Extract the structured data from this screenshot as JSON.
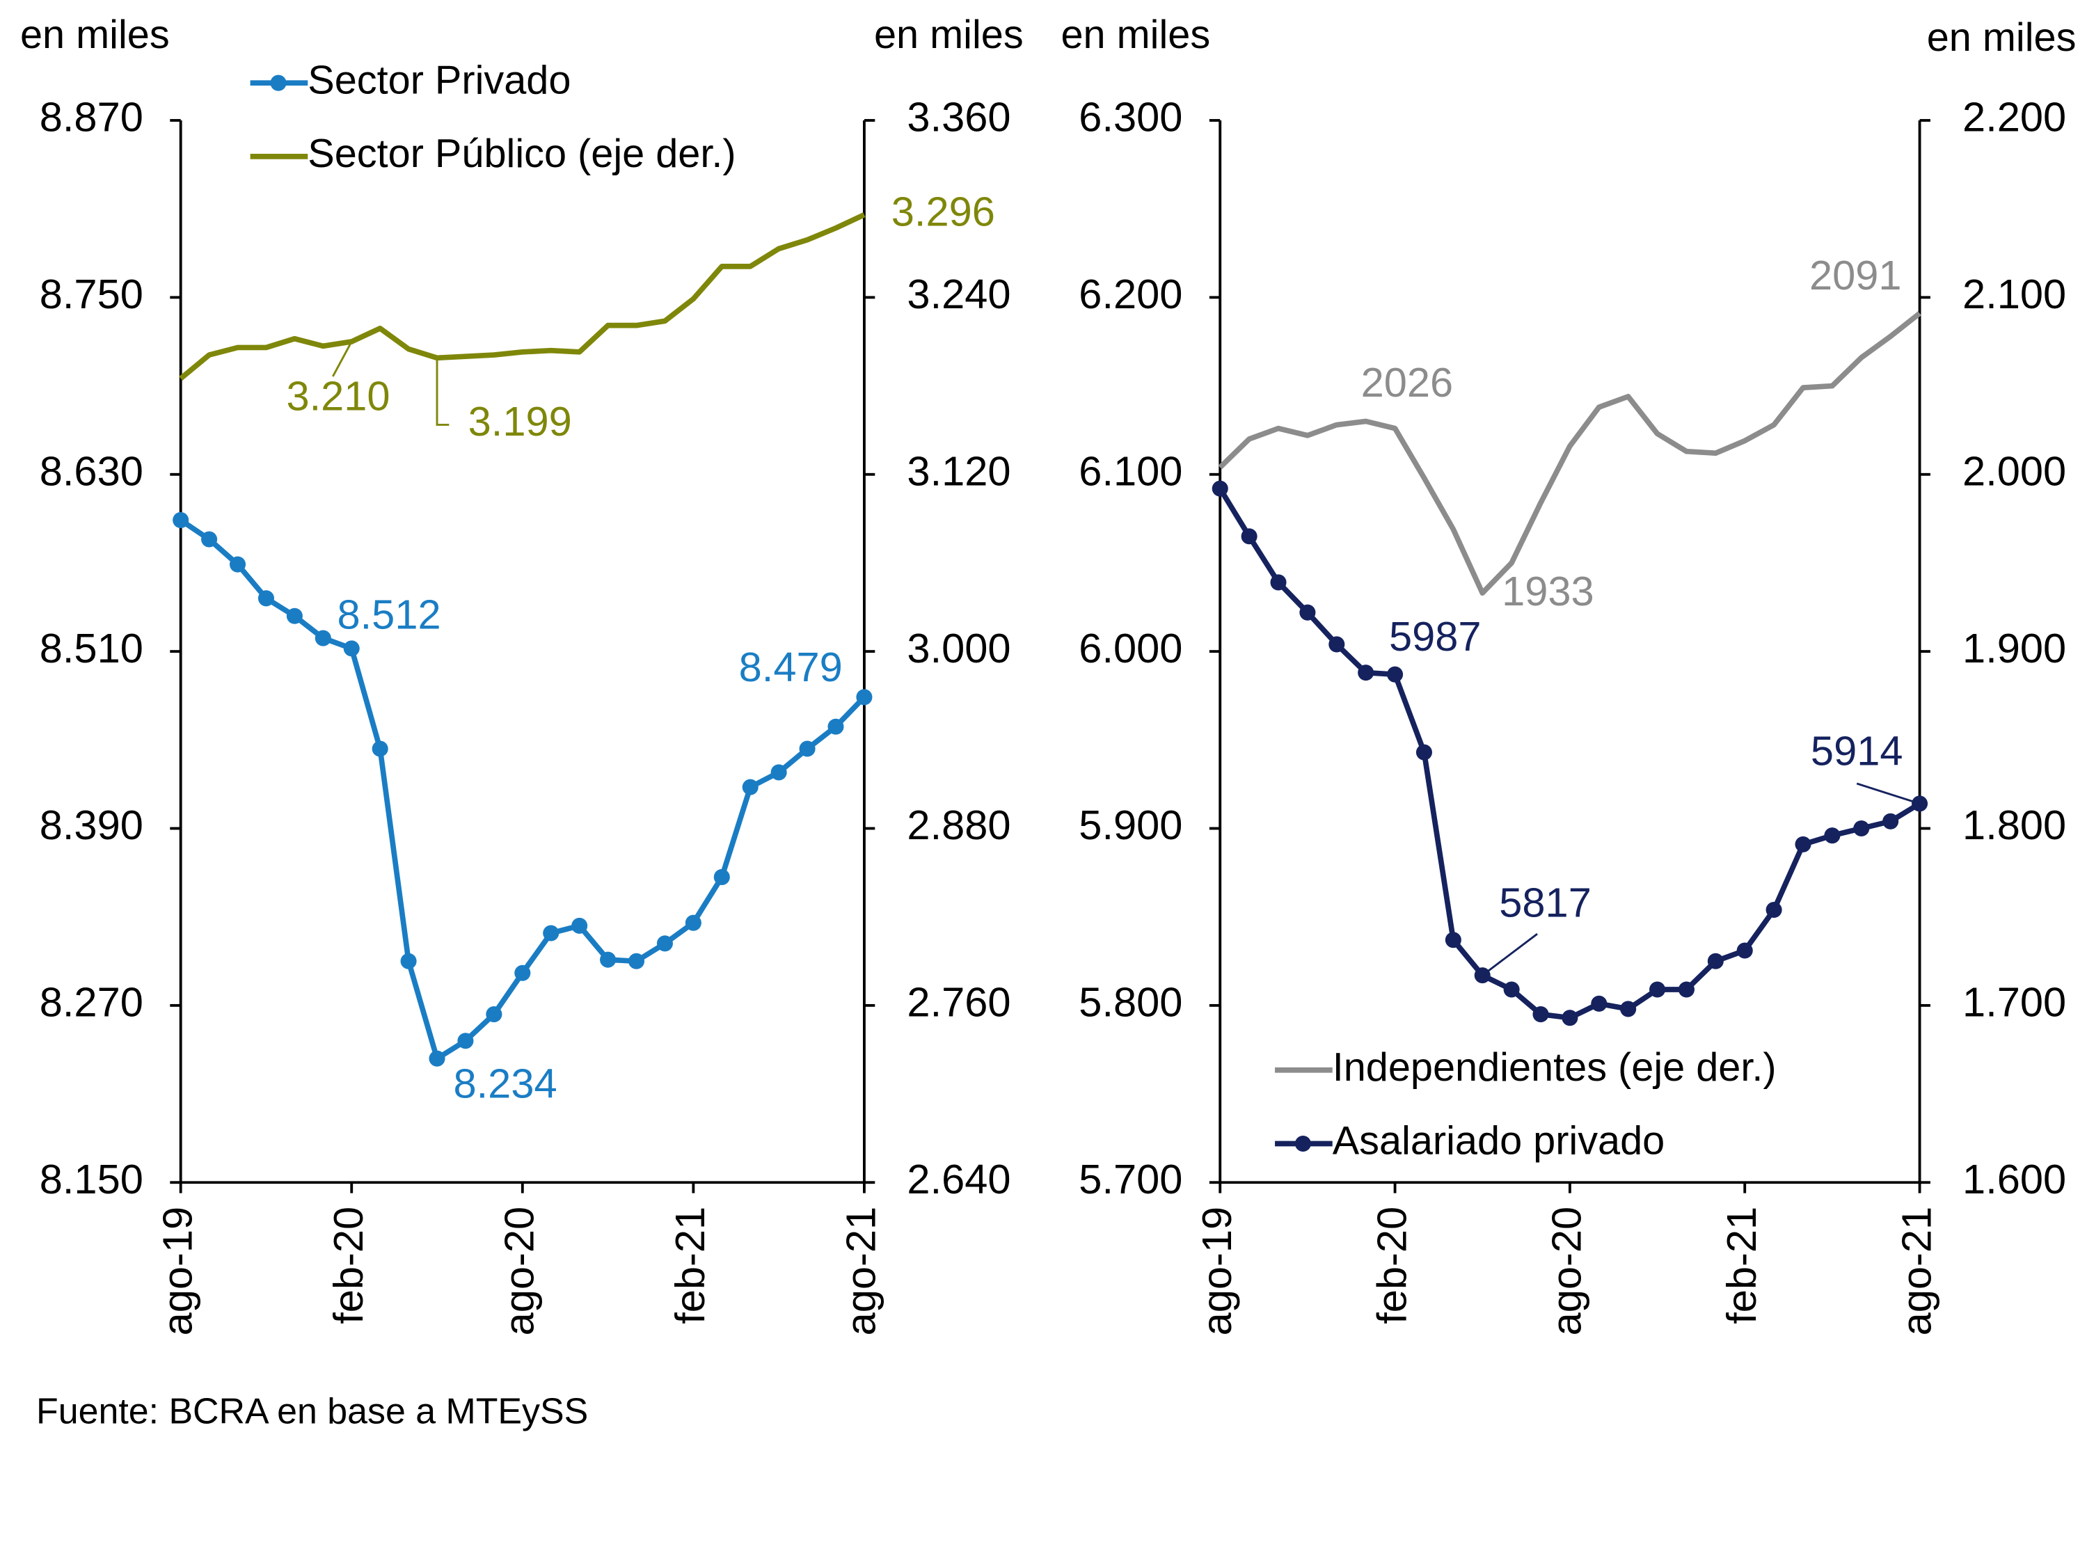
{
  "chart_data": [
    {
      "type": "line",
      "y_label": "en miles",
      "y2_label": "en miles",
      "legend": "upper left",
      "categories": [
        "ago-19",
        null,
        null,
        null,
        null,
        null,
        "feb-20",
        null,
        null,
        null,
        null,
        null,
        "ago-20",
        null,
        null,
        null,
        null,
        null,
        "feb-21",
        null,
        null,
        null,
        null,
        null,
        "ago-21"
      ],
      "ylim": [
        8150,
        8870
      ],
      "yticks": [
        {
          "value": 8150,
          "label": "8.150"
        },
        {
          "value": 8270,
          "label": "8.270"
        },
        {
          "value": 8390,
          "label": "8.390"
        },
        {
          "value": 8510,
          "label": "8.510"
        },
        {
          "value": 8630,
          "label": "8.630"
        },
        {
          "value": 8750,
          "label": "8.750"
        },
        {
          "value": 8870,
          "label": "8.870"
        }
      ],
      "y2lim": [
        2640,
        3360
      ],
      "y2ticks": [
        {
          "value": 2640,
          "label": "2.640"
        },
        {
          "value": 2760,
          "label": "2.760"
        },
        {
          "value": 2880,
          "label": "2.880"
        },
        {
          "value": 3000,
          "label": "3.000"
        },
        {
          "value": 3120,
          "label": "3.120"
        },
        {
          "value": 3240,
          "label": "3.240"
        },
        {
          "value": 3360,
          "label": "3.360"
        }
      ],
      "series": [
        {
          "name": "Sector Privado",
          "color": "#1a7dc4",
          "marker": "o",
          "values": [
            8599,
            8586,
            8569,
            8546,
            8534,
            8519,
            8512,
            8444,
            8300,
            8234,
            8246,
            8264,
            8292,
            8319,
            8324,
            8301,
            8300,
            8312,
            8326,
            8357,
            8418,
            8428,
            8444,
            8459,
            8479
          ],
          "value_labels": [
            null,
            null,
            null,
            null,
            null,
            null,
            "8.512",
            null,
            null,
            "8.234",
            null,
            null,
            null,
            null,
            null,
            null,
            null,
            null,
            null,
            null,
            null,
            null,
            null,
            null,
            "8.479"
          ]
        },
        {
          "name": "Sector Público (eje der.)",
          "color": "#7f870a",
          "axis": "y2",
          "values": [
            3185,
            3201,
            3206,
            3206,
            3212,
            3207,
            3210,
            3219,
            3205,
            3199,
            3200,
            3201,
            3203,
            3204,
            3203,
            3221,
            3221,
            3224,
            3239,
            3261,
            3261,
            3273,
            3279,
            3287,
            3296
          ],
          "value_labels": [
            null,
            null,
            null,
            null,
            null,
            null,
            "3.210",
            null,
            null,
            "3.199",
            null,
            null,
            null,
            null,
            null,
            null,
            null,
            null,
            null,
            null,
            null,
            null,
            null,
            null,
            "3.296"
          ]
        }
      ]
    },
    {
      "type": "line",
      "y_label": "en miles",
      "y2_label": "en miles",
      "legend": "lower left",
      "categories": [
        "ago-19",
        null,
        null,
        null,
        null,
        null,
        "feb-20",
        null,
        null,
        null,
        null,
        null,
        "ago-20",
        null,
        null,
        null,
        null,
        null,
        "feb-21",
        null,
        null,
        null,
        null,
        null,
        "ago-21"
      ],
      "ylim": [
        5700,
        6300
      ],
      "yticks": [
        {
          "value": 5700,
          "label": "5.700"
        },
        {
          "value": 5800,
          "label": "5.800"
        },
        {
          "value": 5900,
          "label": "5.900"
        },
        {
          "value": 6000,
          "label": "6.000"
        },
        {
          "value": 6100,
          "label": "6.100"
        },
        {
          "value": 6200,
          "label": "6.200"
        },
        {
          "value": 6300,
          "label": "6.300"
        }
      ],
      "y2lim": [
        1600,
        2200
      ],
      "y2ticks": [
        {
          "value": 1600,
          "label": "1.600"
        },
        {
          "value": 1700,
          "label": "1.700"
        },
        {
          "value": 1800,
          "label": "1.800"
        },
        {
          "value": 1900,
          "label": "1.900"
        },
        {
          "value": 2000,
          "label": "2.000"
        },
        {
          "value": 2100,
          "label": "2.100"
        },
        {
          "value": 2200,
          "label": "2.200"
        }
      ],
      "series": [
        {
          "name": "Independientes (eje der.)",
          "color": "#8c8c8c",
          "axis": "y2",
          "values": [
            2004,
            2020,
            2026,
            2022,
            2028,
            2030,
            2026,
            1998,
            1969,
            1933,
            1950,
            1984,
            2016,
            2038,
            2044,
            2023,
            2013,
            2012,
            2019,
            2028,
            2049,
            2050,
            2066,
            2078,
            2091
          ],
          "value_labels": [
            null,
            null,
            null,
            null,
            null,
            null,
            "2026",
            null,
            null,
            "1933",
            null,
            null,
            null,
            null,
            null,
            null,
            null,
            null,
            null,
            null,
            null,
            null,
            null,
            null,
            "2091"
          ]
        },
        {
          "name": "Asalariado privado",
          "color": "#15225e",
          "marker": "o",
          "values": [
            6092,
            6065,
            6039,
            6022,
            6004,
            5988,
            5987,
            5943,
            5837,
            5817,
            5809,
            5795,
            5793,
            5801,
            5798,
            5809,
            5809,
            5825,
            5831,
            5854,
            5891,
            5896,
            5900,
            5904,
            5914
          ],
          "value_labels": [
            null,
            null,
            null,
            null,
            null,
            null,
            "5987",
            null,
            null,
            "5817",
            null,
            null,
            null,
            null,
            null,
            null,
            null,
            null,
            null,
            null,
            null,
            null,
            null,
            null,
            "5914"
          ]
        }
      ]
    }
  ],
  "source": "Fuente: BCRA en base a MTEySS"
}
